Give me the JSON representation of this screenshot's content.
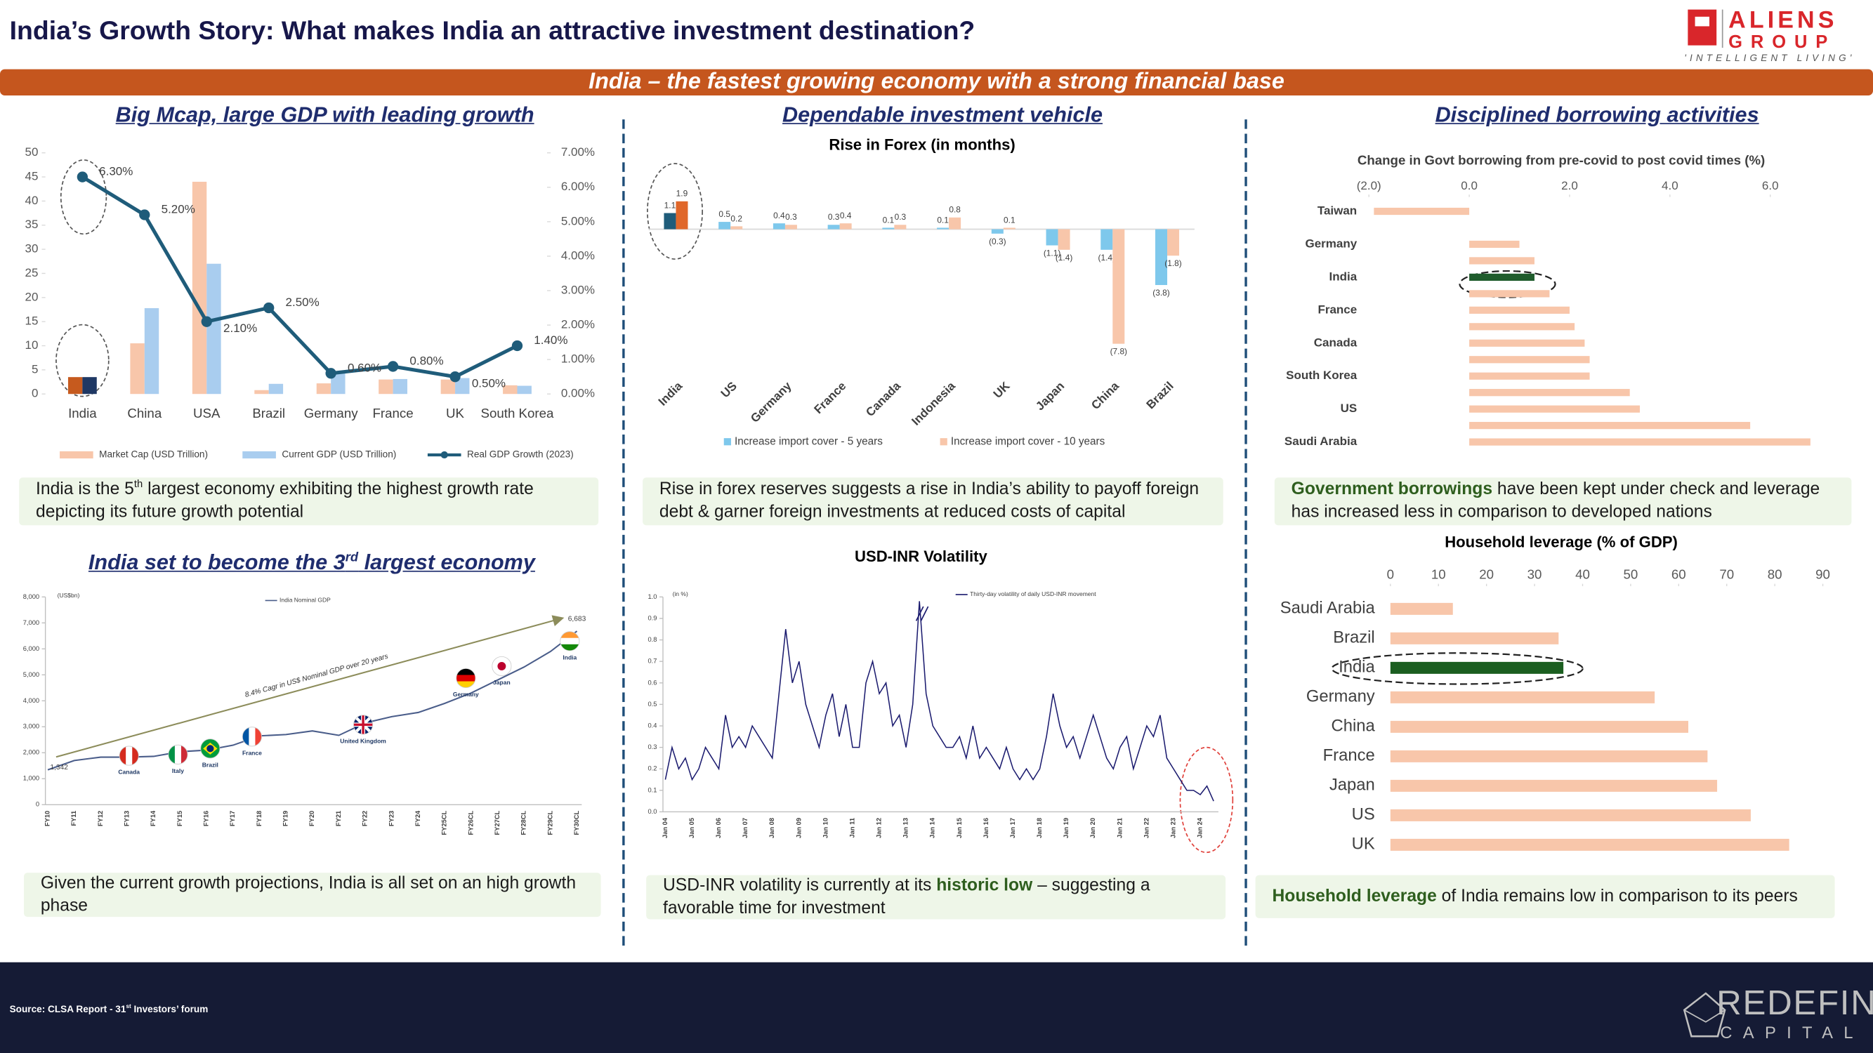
{
  "header": {
    "title": "India’s Growth Story:  What makes India an attractive investment destination?",
    "logo": {
      "name": "ALIENS",
      "group": "GROUP",
      "tagline": "'INTELLIGENT LIVING'"
    }
  },
  "banner": "India – the fastest growing economy with a strong financial base",
  "sections": [
    {
      "parts": [
        {
          "text": "Big Mcap, large GDP with leading growth"
        }
      ]
    },
    {
      "parts": [
        {
          "text": "Dependable investment vehicle"
        }
      ]
    },
    {
      "parts": [
        {
          "text": "Disciplined borrowing activities"
        }
      ]
    },
    {
      "parts": [
        {
          "text": "India set to become the 3"
        },
        {
          "text": "rd",
          "format": "sup"
        },
        {
          "text": " largest economy"
        }
      ]
    }
  ],
  "notes": [
    {
      "parts": [
        {
          "text": "India is the 5"
        },
        {
          "text": "th",
          "format": "sup"
        },
        {
          "text": " largest economy exhibiting the highest growth rate depicting its future growth potential"
        }
      ]
    },
    {
      "parts": [
        {
          "text": "Rise in forex reserves suggests a rise in India’s ability to payoff foreign debt & garner foreign investments at reduced costs of capital"
        }
      ]
    },
    {
      "parts": [
        {
          "text": "Government borrowings",
          "format": "bold"
        },
        {
          "text": " have been kept under check and leverage has increased less in comparison to developed nations"
        }
      ]
    },
    {
      "parts": [
        {
          "text": "Given the current growth projections, India is all set on an high growth phase"
        }
      ]
    },
    {
      "parts": [
        {
          "text": "USD-INR volatility is currently at its "
        },
        {
          "text": "historic low",
          "format": "bold"
        },
        {
          "text": " – suggesting a favorable time for investment"
        }
      ]
    },
    {
      "parts": [
        {
          "text": "Household leverage",
          "format": "bold"
        },
        {
          "text": " of India remains low in comparison to its peers"
        }
      ]
    }
  ],
  "chart_data": [
    {
      "type": "bar_line",
      "categories": [
        "India",
        "China",
        "USA",
        "Brazil",
        "Germany",
        "France",
        "UK",
        "South Korea"
      ],
      "highlight": "India",
      "series": [
        {
          "name": "Market Cap (USD Trillion)",
          "color": "#f8c6aa",
          "highlight_color": "#c65a1e",
          "values": [
            3.5,
            10.5,
            44,
            0.8,
            2.2,
            3.0,
            3.0,
            1.8
          ]
        },
        {
          "name": "Current GDP (USD Trillion)",
          "color": "#a9cdef",
          "highlight_color": "#1f3864",
          "values": [
            3.5,
            17.8,
            27,
            2.1,
            4.5,
            3.1,
            3.3,
            1.7
          ]
        },
        {
          "name": "Real GDP Growth (2023)",
          "type": "line",
          "axis": "y2",
          "color": "#1f5c7a",
          "values": [
            6.3,
            5.2,
            2.1,
            2.5,
            0.6,
            0.8,
            0.5,
            1.4
          ],
          "value_labels": [
            "6.30%",
            "5.20%",
            "2.10%",
            "2.50%",
            "0.60%",
            "0.80%",
            "0.50%",
            "1.40%"
          ]
        }
      ],
      "ylim": [
        0,
        50
      ],
      "yticks": [
        0,
        5,
        10,
        15,
        20,
        25,
        30,
        35,
        40,
        45,
        50
      ],
      "y2lim": [
        0,
        7
      ],
      "y2ticks": [
        {
          "value": 0,
          "label": "0.00%"
        },
        {
          "value": 1,
          "label": "1.00%"
        },
        {
          "value": 2,
          "label": "2.00%"
        },
        {
          "value": 3,
          "label": "3.00%"
        },
        {
          "value": 4,
          "label": "4.00%"
        },
        {
          "value": 5,
          "label": "5.00%"
        },
        {
          "value": 6,
          "label": "6.00%"
        },
        {
          "value": 7,
          "label": "7.00%"
        }
      ]
    },
    {
      "type": "bar",
      "title": "Rise in Forex (in months)",
      "categories": [
        "India",
        "US",
        "Germany",
        "France",
        "Canada",
        "Indonesia",
        "UK",
        "Japan",
        "China",
        "Brazil"
      ],
      "highlight": "India",
      "series": [
        {
          "name": "Increase import cover -  5 years",
          "color": "#7ec8ec",
          "highlight_color": "#1f5c7a",
          "values": [
            1.1,
            0.5,
            0.4,
            0.3,
            0.1,
            0.1,
            -0.3,
            -1.1,
            -1.4,
            -3.8
          ],
          "value_labels": [
            "1.1",
            "0.5",
            "0.4",
            "0.3",
            "0.1",
            "0.1",
            "(0.3)",
            "(1.1)",
            "(1.4)",
            "(3.8)"
          ]
        },
        {
          "name": "Increase import cover -  10 years",
          "color": "#f8c6aa",
          "highlight_color": "#e0672a",
          "values": [
            1.9,
            0.2,
            0.3,
            0.4,
            0.3,
            0.8,
            0.1,
            -1.4,
            -7.8,
            -1.8
          ],
          "value_labels": [
            "1.9",
            "0.2",
            "0.3",
            "0.4",
            "0.3",
            "0.8",
            "0.1",
            "(1.4)",
            "(7.8)",
            "(1.8)"
          ]
        }
      ]
    },
    {
      "type": "hbar",
      "title": "Change in Govt borrowing from pre-covid to post covid times (%)",
      "categories": [
        "Taiwan",
        null,
        "Germany",
        null,
        "India",
        null,
        "France",
        null,
        "Canada",
        null,
        "South Korea",
        null,
        "US",
        null,
        "Saudi Arabia"
      ],
      "values": [
        -1.9,
        0,
        1.0,
        1.3,
        1.3,
        1.6,
        2.0,
        2.1,
        2.3,
        2.4,
        2.4,
        3.2,
        3.4,
        5.6,
        6.8
      ],
      "color": "#f8c6aa",
      "highlight": "India",
      "highlight_color": "#1f5c2c",
      "xlim": [
        -2.2,
        7
      ],
      "xticks": [
        {
          "value": -2,
          "label": "(2.0)"
        },
        {
          "value": 0,
          "label": "0.0"
        },
        {
          "value": 2,
          "label": "2.0"
        },
        {
          "value": 4,
          "label": "4.0"
        },
        {
          "value": 6,
          "label": "6.0"
        }
      ]
    },
    {
      "type": "hbar",
      "title": "Household leverage (% of GDP)",
      "categories": [
        "Saudi Arabia",
        "Brazil",
        "India",
        "Germany",
        "China",
        "France",
        "Japan",
        "US",
        "UK"
      ],
      "values": [
        13,
        35,
        36,
        55,
        62,
        66,
        68,
        75,
        83
      ],
      "color": "#f8c6aa",
      "highlight": "India",
      "highlight_color": "#1b5e20",
      "xlim": [
        0,
        90
      ],
      "xticks": [
        0,
        10,
        20,
        30,
        40,
        50,
        60,
        70,
        80,
        90
      ]
    },
    {
      "type": "line",
      "y_unit": "(US$bn)",
      "categories": [
        "FY10",
        "FY11",
        "FY12",
        "FY13",
        "FY14",
        "FY15",
        "FY16",
        "FY17",
        "FY18",
        "FY19",
        "FY20",
        "FY21",
        "FY22",
        "FY23",
        "FY24",
        "FY25CL",
        "FY26CL",
        "FY27CL",
        "FY28CL",
        "FY29CL",
        "FY30CL"
      ],
      "series": [
        {
          "name": "India Nominal GDP",
          "color": "#4a5d8a",
          "values": [
            1342,
            1700,
            1830,
            1830,
            1860,
            2040,
            2100,
            2290,
            2650,
            2700,
            2840,
            2670,
            3150,
            3390,
            3550,
            3900,
            4300,
            4800,
            5300,
            5900,
            6683
          ],
          "value_labels": [
            "1,342",
            null,
            null,
            null,
            null,
            null,
            null,
            null,
            null,
            null,
            null,
            null,
            null,
            null,
            null,
            null,
            null,
            null,
            null,
            null,
            "6,683"
          ]
        }
      ],
      "ylim": [
        0,
        8000
      ],
      "yticks": [
        0,
        {
          "value": 1000,
          "label": "1,000"
        },
        {
          "value": 2000,
          "label": "2,000"
        },
        {
          "value": 3000,
          "label": "3,000"
        },
        {
          "value": 4000,
          "label": "4,000"
        },
        {
          "value": 5000,
          "label": "5,000"
        },
        {
          "value": 6000,
          "label": "6,000"
        },
        {
          "value": 7000,
          "label": "7,000"
        },
        {
          "value": 8000,
          "label": "8,000"
        }
      ],
      "annotations": {
        "trend": "8.4% Cagr in US$ Nominal GDP over 20 years",
        "countries": [
          "Canada",
          "Italy",
          "Brazil",
          "France",
          "United Kingdom",
          "Germany",
          "Japan",
          "India"
        ]
      }
    },
    {
      "type": "line",
      "title": "USD-INR Volatility",
      "y_unit": "(in %)",
      "categories": [
        "Jan 04",
        null,
        null,
        null,
        "Jan 05",
        null,
        null,
        null,
        "Jan 06",
        null,
        null,
        null,
        "Jan 07",
        null,
        null,
        null,
        "Jan 08",
        null,
        null,
        null,
        "Jan 09",
        null,
        null,
        null,
        "Jan 10",
        null,
        null,
        null,
        "Jan 11",
        null,
        null,
        null,
        "Jan 12",
        null,
        null,
        null,
        "Jan 13",
        null,
        null,
        null,
        "Jan 14",
        null,
        null,
        null,
        "Jan 15",
        null,
        null,
        null,
        "Jan 16",
        null,
        null,
        null,
        "Jan 17",
        null,
        null,
        null,
        "Jan 18",
        null,
        null,
        null,
        "Jan 19",
        null,
        null,
        null,
        "Jan 20",
        null,
        null,
        null,
        "Jan 21",
        null,
        null,
        null,
        "Jan 22",
        null,
        null,
        null,
        "Jan 23",
        null,
        null,
        null,
        "Jan 24",
        null,
        null
      ],
      "series": [
        {
          "name": "Thirty-day volatility of daily USD-INR movement",
          "color": "#1a1a6e",
          "values": [
            0.15,
            0.3,
            0.2,
            0.25,
            0.15,
            0.2,
            0.3,
            0.25,
            0.2,
            0.45,
            0.3,
            0.35,
            0.3,
            0.4,
            0.35,
            0.3,
            0.25,
            0.55,
            0.85,
            0.6,
            0.7,
            0.5,
            0.4,
            0.3,
            0.45,
            0.55,
            0.35,
            0.5,
            0.3,
            0.3,
            0.6,
            0.7,
            0.55,
            0.6,
            0.4,
            0.45,
            0.3,
            0.5,
            0.98,
            0.55,
            0.4,
            0.35,
            0.3,
            0.3,
            0.35,
            0.25,
            0.4,
            0.25,
            0.3,
            0.25,
            0.2,
            0.3,
            0.2,
            0.15,
            0.2,
            0.15,
            0.2,
            0.35,
            0.55,
            0.4,
            0.3,
            0.35,
            0.25,
            0.35,
            0.45,
            0.35,
            0.25,
            0.2,
            0.3,
            0.35,
            0.2,
            0.3,
            0.4,
            0.35,
            0.45,
            0.25,
            0.2,
            0.15,
            0.1,
            0.1,
            0.08,
            0.12,
            0.05
          ]
        }
      ],
      "ylim": [
        0,
        1
      ],
      "yticks": [
        {
          "value": 0,
          "label": "0.0"
        },
        0.1,
        0.2,
        0.3,
        0.4,
        0.5,
        0.6,
        0.7,
        0.8,
        0.9,
        {
          "value": 1,
          "label": "1.0"
        }
      ]
    }
  ],
  "footer": {
    "source": {
      "parts": [
        {
          "text": "Source: CLSA Report  - 31"
        },
        {
          "text": "st",
          "format": "sup"
        },
        {
          "text": " Investors’ forum"
        }
      ]
    },
    "brand": "REDEFIN",
    "brand_sub": "CAPITAL"
  }
}
